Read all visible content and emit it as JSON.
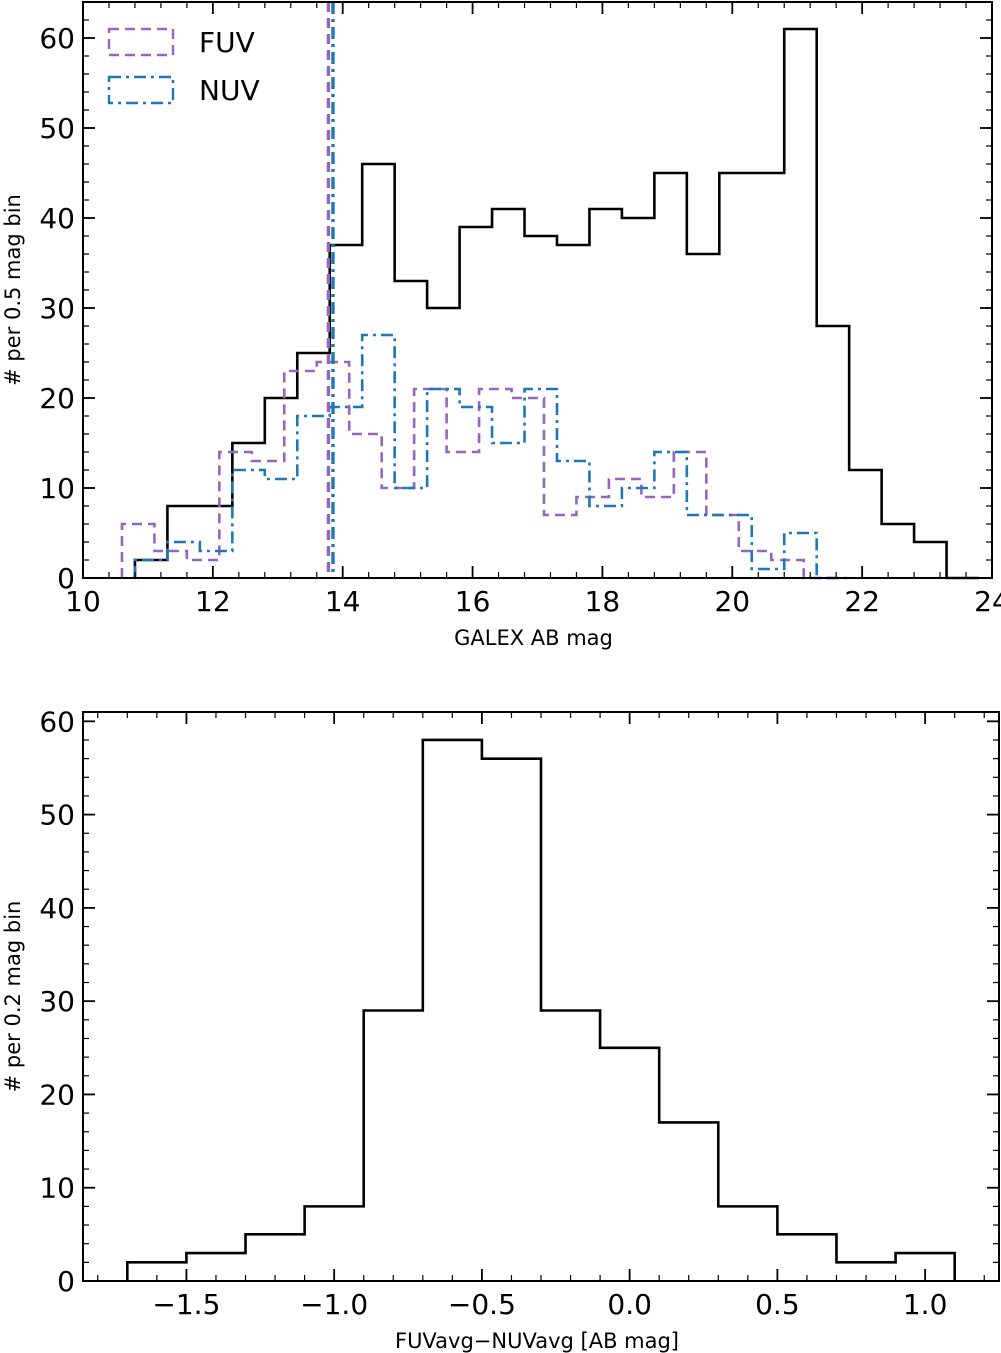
{
  "chart_data": [
    {
      "type": "histogram",
      "xlabel": "GALEX AB mag",
      "ylabel": "# per 0.5 mag bin",
      "xlim": [
        10,
        24
      ],
      "ylim": [
        0,
        64
      ],
      "xticks": [
        10,
        12,
        14,
        16,
        18,
        20,
        22,
        24
      ],
      "yticks": [
        0,
        10,
        20,
        30,
        40,
        50,
        60
      ],
      "x_tick_labels": [
        "10",
        "12",
        "14",
        "16",
        "18",
        "20",
        "22",
        "24"
      ],
      "y_tick_labels": [
        "0",
        "10",
        "20",
        "30",
        "40",
        "50",
        "60"
      ],
      "legend_position": "top-left",
      "grid": false,
      "series": [
        {
          "name": "",
          "style": "solid",
          "color": "#000000",
          "bin_edges": [
            10.8,
            11.3,
            11.8,
            12.3,
            12.8,
            13.3,
            13.8,
            14.3,
            14.8,
            15.3,
            15.8,
            16.3,
            16.8,
            17.3,
            17.8,
            18.3,
            18.8,
            19.3,
            19.8,
            20.3,
            20.8,
            21.3,
            21.8,
            22.3,
            22.8,
            23.3,
            23.8
          ],
          "counts": [
            2,
            8,
            8,
            15,
            20,
            25,
            37,
            46,
            33,
            30,
            39,
            41,
            38,
            37,
            41,
            40,
            45,
            36,
            45,
            45,
            61,
            28,
            12,
            6,
            4,
            0
          ]
        },
        {
          "name": "FUV",
          "style": "dashed",
          "color": "#9467bd",
          "bin_edges": [
            10.6,
            11.1,
            11.6,
            12.1,
            12.6,
            13.1,
            13.6,
            14.1,
            14.6,
            15.1,
            15.6,
            16.1,
            16.6,
            17.1,
            17.6,
            18.1,
            18.6,
            19.1,
            19.6,
            20.1,
            20.6,
            21.1,
            21.6
          ],
          "counts": [
            6,
            3,
            2,
            14,
            13,
            23,
            24,
            16,
            10,
            21,
            14,
            21,
            20,
            7,
            9,
            11,
            9,
            14,
            7,
            3,
            2,
            0
          ]
        },
        {
          "name": "NUV",
          "style": "dashdot",
          "color": "#1f77b4",
          "bin_edges": [
            10.8,
            11.3,
            11.8,
            12.3,
            12.8,
            13.3,
            13.8,
            14.3,
            14.8,
            15.3,
            15.8,
            16.3,
            16.8,
            17.3,
            17.8,
            18.3,
            18.8,
            19.3,
            19.8,
            20.3,
            20.8,
            21.3,
            21.8
          ],
          "counts": [
            2,
            4,
            3,
            12,
            11,
            18,
            19,
            27,
            10,
            21,
            19,
            15,
            21,
            13,
            8,
            10,
            14,
            7,
            7,
            1,
            5,
            0
          ]
        }
      ],
      "vlines": [
        {
          "x": 13.78,
          "style": "dashed",
          "color": "#9467bd"
        },
        {
          "x": 13.85,
          "style": "dashdot",
          "color": "#1f77b4"
        }
      ]
    },
    {
      "type": "histogram",
      "xlabel": "FUVavg−NUVavg [AB mag]",
      "ylabel": "# per 0.2 mag bin",
      "xlim": [
        -1.85,
        1.25
      ],
      "ylim": [
        0,
        61
      ],
      "xticks": [
        -1.5,
        -1.0,
        -0.5,
        0.0,
        0.5,
        1.0
      ],
      "yticks": [
        0,
        10,
        20,
        30,
        40,
        50,
        60
      ],
      "x_tick_labels": [
        "−1.5",
        "−1.0",
        "−0.5",
        "0.0",
        "0.5",
        "1.0"
      ],
      "y_tick_labels": [
        "0",
        "10",
        "20",
        "30",
        "40",
        "50",
        "60"
      ],
      "grid": false,
      "series": [
        {
          "name": "",
          "style": "solid",
          "color": "#000000",
          "bin_edges": [
            -1.7,
            -1.5,
            -1.3,
            -1.1,
            -0.9,
            -0.7,
            -0.5,
            -0.3,
            -0.1,
            0.1,
            0.3,
            0.5,
            0.7,
            0.9,
            1.1
          ],
          "counts": [
            2,
            3,
            5,
            8,
            29,
            58,
            56,
            29,
            25,
            17,
            8,
            5,
            2,
            3
          ]
        }
      ]
    }
  ]
}
